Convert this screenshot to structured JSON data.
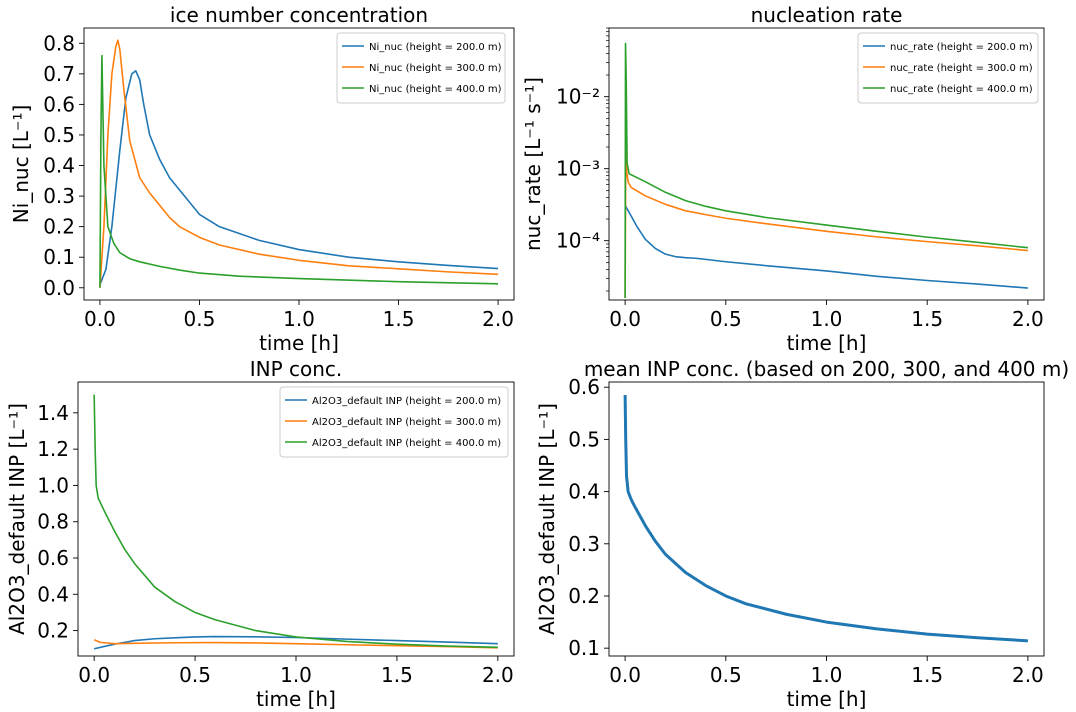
{
  "chart_data": [
    {
      "type": "line",
      "title": "ice number concentration",
      "xlabel": "time [h]",
      "ylabel": "Ni_nuc [L⁻¹]",
      "xlim": [
        -0.08,
        2.08
      ],
      "ylim": [
        -0.04,
        0.85
      ],
      "xticks": [
        0.0,
        0.5,
        1.0,
        1.5,
        2.0
      ],
      "xticklabels": [
        "0.0",
        "0.5",
        "1.0",
        "1.5",
        "2.0"
      ],
      "yticks": [
        0.0,
        0.1,
        0.2,
        0.3,
        0.4,
        0.5,
        0.6,
        0.7,
        0.8
      ],
      "yticklabels": [
        "0.0",
        "0.1",
        "0.2",
        "0.3",
        "0.4",
        "0.5",
        "0.6",
        "0.7",
        "0.8"
      ],
      "yscale": "linear",
      "legend": "top-right",
      "series": [
        {
          "name": "Ni_nuc (height = 200.0 m)",
          "color": "#1f77b4",
          "x": [
            0,
            0.03,
            0.06,
            0.1,
            0.13,
            0.16,
            0.18,
            0.2,
            0.22,
            0.25,
            0.3,
            0.35,
            0.4,
            0.5,
            0.6,
            0.8,
            1.0,
            1.25,
            1.5,
            1.75,
            2.0
          ],
          "y": [
            0.01,
            0.06,
            0.2,
            0.45,
            0.62,
            0.7,
            0.71,
            0.68,
            0.6,
            0.5,
            0.42,
            0.36,
            0.32,
            0.24,
            0.2,
            0.155,
            0.125,
            0.1,
            0.085,
            0.073,
            0.063
          ]
        },
        {
          "name": "Ni_nuc (height = 300.0 m)",
          "color": "#ff7f0e",
          "x": [
            0,
            0.02,
            0.04,
            0.06,
            0.08,
            0.09,
            0.1,
            0.12,
            0.15,
            0.2,
            0.25,
            0.3,
            0.35,
            0.4,
            0.5,
            0.6,
            0.8,
            1.0,
            1.25,
            1.5,
            1.75,
            2.0
          ],
          "y": [
            0.0,
            0.2,
            0.5,
            0.7,
            0.79,
            0.81,
            0.78,
            0.65,
            0.48,
            0.36,
            0.31,
            0.27,
            0.23,
            0.2,
            0.165,
            0.14,
            0.11,
            0.09,
            0.072,
            0.062,
            0.052,
            0.044
          ]
        },
        {
          "name": "Ni_nuc (height = 400.0 m)",
          "color": "#2ca02c",
          "x": [
            0,
            0.005,
            0.01,
            0.02,
            0.04,
            0.07,
            0.1,
            0.15,
            0.2,
            0.3,
            0.4,
            0.5,
            0.7,
            1.0,
            1.5,
            2.0
          ],
          "y": [
            0.0,
            0.5,
            0.76,
            0.4,
            0.2,
            0.145,
            0.115,
            0.095,
            0.085,
            0.07,
            0.058,
            0.048,
            0.038,
            0.03,
            0.02,
            0.013
          ]
        }
      ]
    },
    {
      "type": "line",
      "title": "nucleation rate",
      "xlabel": "time [h]",
      "ylabel": "nuc_rate [L⁻¹ s⁻¹]",
      "xlim": [
        -0.08,
        2.08
      ],
      "ylim": [
        1.5e-05,
        0.09
      ],
      "xticks": [
        0.0,
        0.5,
        1.0,
        1.5,
        2.0
      ],
      "xticklabels": [
        "0.0",
        "0.5",
        "1.0",
        "1.5",
        "2.0"
      ],
      "yticks": [
        0.0001,
        0.001,
        0.01
      ],
      "yticklabels": [
        "10⁻⁴",
        "10⁻³",
        "10⁻²"
      ],
      "yscale": "log",
      "legend": "top-right",
      "series": [
        {
          "name": "nuc_rate (height = 200.0 m)",
          "color": "#1f77b4",
          "x": [
            0,
            0.03,
            0.06,
            0.1,
            0.15,
            0.2,
            0.25,
            0.3,
            0.35,
            0.4,
            0.5,
            0.7,
            1.0,
            1.25,
            1.5,
            1.75,
            2.0
          ],
          "y": [
            0.00031,
            0.00022,
            0.000155,
            0.000105,
            7.8e-05,
            6.5e-05,
            6e-05,
            5.8e-05,
            5.7e-05,
            5.5e-05,
            5.1e-05,
            4.5e-05,
            3.8e-05,
            3.2e-05,
            2.8e-05,
            2.5e-05,
            2.2e-05
          ]
        },
        {
          "name": "nuc_rate (height = 300.0 m)",
          "color": "#ff7f0e",
          "x": [
            0,
            0.004,
            0.008,
            0.015,
            0.03,
            0.1,
            0.2,
            0.3,
            0.35,
            0.4,
            0.5,
            0.7,
            1.0,
            1.25,
            1.5,
            1.75,
            2.0
          ],
          "y": [
            1.6e-05,
            0.0045,
            0.0009,
            0.00065,
            0.00055,
            0.00042,
            0.00032,
            0.00026,
            0.000245,
            0.00023,
            0.000205,
            0.000172,
            0.000135,
            0.000113,
            9.7e-05,
            8.5e-05,
            7.3e-05
          ]
        },
        {
          "name": "nuc_rate (height = 400.0 m)",
          "color": "#2ca02c",
          "x": [
            0,
            0.002,
            0.005,
            0.01,
            0.02,
            0.1,
            0.2,
            0.3,
            0.4,
            0.5,
            0.7,
            1.0,
            1.25,
            1.5,
            1.75,
            2.0
          ],
          "y": [
            1.6e-05,
            0.055,
            0.02,
            0.0012,
            0.00085,
            0.00066,
            0.00047,
            0.00036,
            0.0003,
            0.00026,
            0.00021,
            0.000165,
            0.000135,
            0.000112,
            9.5e-05,
            8e-05
          ]
        }
      ]
    },
    {
      "type": "line",
      "title": "INP conc.",
      "xlabel": "time [h]",
      "ylabel": "Al2O3_default INP [L⁻¹]",
      "xlim": [
        -0.08,
        2.08
      ],
      "ylim": [
        0.06,
        1.57
      ],
      "xticks": [
        0.0,
        0.5,
        1.0,
        1.5,
        2.0
      ],
      "xticklabels": [
        "0.0",
        "0.5",
        "1.0",
        "1.5",
        "2.0"
      ],
      "yticks": [
        0.2,
        0.4,
        0.6,
        0.8,
        1.0,
        1.2,
        1.4
      ],
      "yticklabels": [
        "0.2",
        "0.4",
        "0.6",
        "0.8",
        "1.0",
        "1.2",
        "1.4"
      ],
      "yscale": "linear",
      "legend": "top-right",
      "series": [
        {
          "name": "Al2O3_default INP (height = 200.0 m)",
          "color": "#1f77b4",
          "x": [
            0,
            0.1,
            0.2,
            0.3,
            0.4,
            0.5,
            0.6,
            0.8,
            1.0,
            1.25,
            1.5,
            1.75,
            2.0
          ],
          "y": [
            0.1,
            0.125,
            0.145,
            0.155,
            0.16,
            0.165,
            0.167,
            0.166,
            0.162,
            0.153,
            0.145,
            0.137,
            0.128
          ]
        },
        {
          "name": "Al2O3_default INP (height = 300.0 m)",
          "color": "#ff7f0e",
          "x": [
            0,
            0.03,
            0.1,
            0.2,
            0.4,
            0.6,
            0.8,
            1.0,
            1.25,
            1.5,
            1.75,
            2.0
          ],
          "y": [
            0.15,
            0.135,
            0.128,
            0.13,
            0.133,
            0.134,
            0.132,
            0.128,
            0.122,
            0.117,
            0.112,
            0.105
          ]
        },
        {
          "name": "Al2O3_default INP (height = 400.0 m)",
          "color": "#2ca02c",
          "x": [
            0,
            0.005,
            0.01,
            0.02,
            0.05,
            0.1,
            0.15,
            0.2,
            0.3,
            0.4,
            0.5,
            0.6,
            0.8,
            1.0,
            1.25,
            1.5,
            1.75,
            2.0
          ],
          "y": [
            1.5,
            1.2,
            1.0,
            0.93,
            0.86,
            0.75,
            0.65,
            0.57,
            0.44,
            0.36,
            0.3,
            0.26,
            0.2,
            0.165,
            0.14,
            0.125,
            0.115,
            0.108
          ]
        }
      ]
    },
    {
      "type": "line",
      "title": "mean INP conc. (based on 200, 300, and 400 m)",
      "xlabel": "time [h]",
      "ylabel": "Al2O3_default INP [L⁻¹]",
      "xlim": [
        -0.08,
        2.08
      ],
      "ylim": [
        0.085,
        0.61
      ],
      "xticks": [
        0.0,
        0.5,
        1.0,
        1.5,
        2.0
      ],
      "xticklabels": [
        "0.0",
        "0.5",
        "1.0",
        "1.5",
        "2.0"
      ],
      "yticks": [
        0.1,
        0.2,
        0.3,
        0.4,
        0.5,
        0.6
      ],
      "yticklabels": [
        "0.1",
        "0.2",
        "0.3",
        "0.4",
        "0.5",
        "0.6"
      ],
      "yscale": "linear",
      "series": [
        {
          "color": "#1f77b4",
          "x": [
            0,
            0.003,
            0.007,
            0.015,
            0.03,
            0.05,
            0.1,
            0.15,
            0.2,
            0.3,
            0.4,
            0.5,
            0.6,
            0.8,
            1.0,
            1.25,
            1.5,
            1.75,
            2.0
          ],
          "y": [
            0.585,
            0.5,
            0.43,
            0.4,
            0.385,
            0.37,
            0.335,
            0.305,
            0.28,
            0.245,
            0.22,
            0.2,
            0.185,
            0.165,
            0.15,
            0.137,
            0.127,
            0.12,
            0.114
          ]
        }
      ]
    }
  ]
}
